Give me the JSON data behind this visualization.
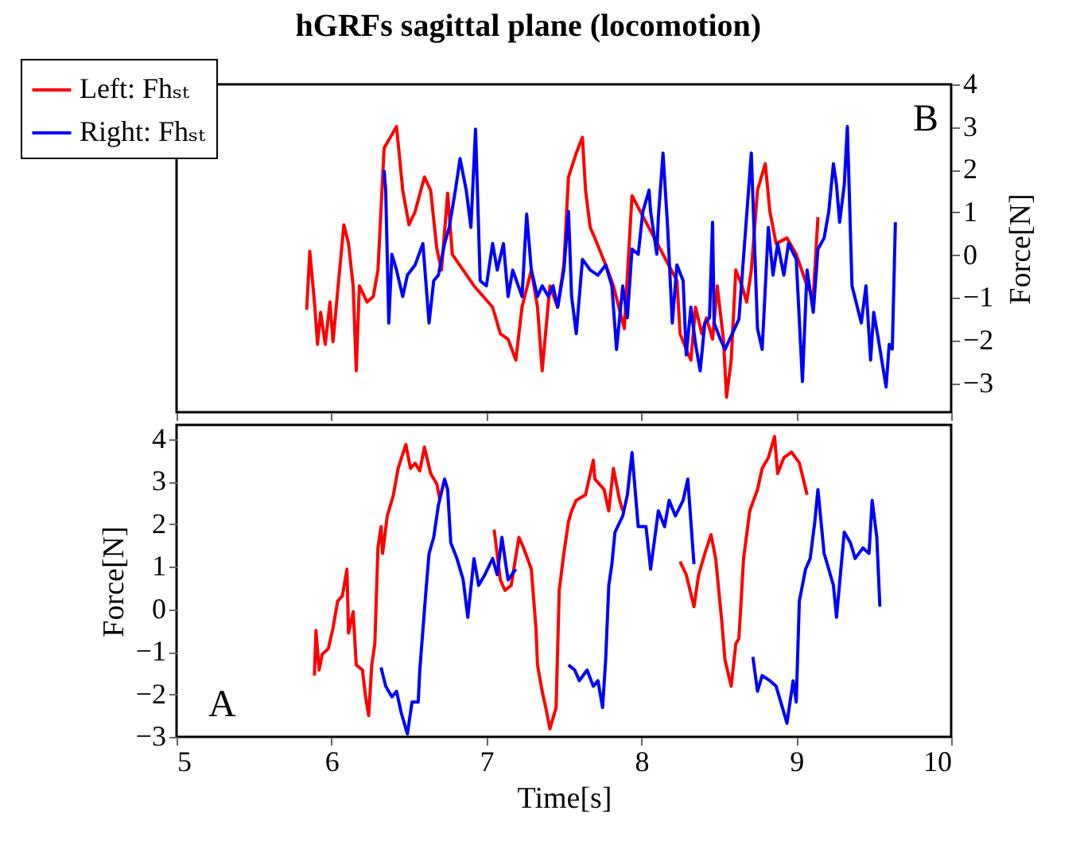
{
  "chart_data": [
    {
      "type": "line",
      "title": "hGRFs sagittal plane (locomotion)",
      "y2label": "Force[N]",
      "xlim": [
        5,
        10
      ],
      "xticks": [
        5,
        6,
        7,
        8,
        9,
        10
      ],
      "y2lim": [
        -3.68,
        4
      ],
      "y2ticks": [
        -3,
        -2,
        -1,
        0,
        1,
        2,
        3,
        4
      ],
      "tick_labels": "y",
      "legend": "top left",
      "annotations": [
        "B"
      ],
      "series": [
        {
          "name": "Left: Fhₛₜ",
          "color": "#ff0000",
          "axis": "y2",
          "x": [
            5.84,
            5.86,
            5.89,
            5.91,
            5.93,
            5.96,
            5.99,
            6.01,
            6.04,
            6.08,
            6.11,
            6.14,
            6.16,
            6.18,
            6.23,
            6.27,
            6.3,
            6.34,
            6.39,
            6.42,
            6.46,
            6.5,
            6.54,
            6.6,
            6.64,
            6.68,
            6.71,
            6.75,
            6.78,
            6.92,
            7.04,
            7.09,
            7.14,
            7.19,
            7.23,
            7.29,
            7.33,
            7.36,
            7.41,
            7.46,
            7.5,
            7.53,
            7.58,
            7.62,
            7.64,
            7.67,
            7.7,
            7.77,
            7.82,
            7.89,
            7.94,
            8.23,
            8.25,
            8.29,
            8.32,
            8.35,
            8.39,
            8.42,
            8.46,
            8.49,
            8.53,
            8.55,
            8.58,
            8.61,
            8.65,
            8.68,
            8.71,
            8.75,
            8.8,
            8.83,
            8.87,
            8.94,
            9.0,
            9.07,
            9.11,
            9.14
          ],
          "values": [
            -1.28,
            0.09,
            -1.1,
            -2.09,
            -1.34,
            -2.09,
            -1.1,
            -2.03,
            -0.85,
            0.71,
            0.27,
            -0.72,
            -2.71,
            -0.72,
            -1.1,
            -0.97,
            -0.35,
            2.51,
            2.82,
            3.01,
            1.52,
            0.71,
            1.02,
            1.83,
            1.52,
            0.15,
            -0.35,
            1.45,
            0.02,
            -0.72,
            -1.22,
            -1.84,
            -1.97,
            -2.46,
            -1.22,
            -0.35,
            -1.22,
            -2.71,
            -0.72,
            -1.22,
            -0.23,
            1.83,
            2.39,
            2.76,
            1.52,
            0.65,
            0.4,
            -0.23,
            -0.72,
            -1.72,
            1.39,
            -0.6,
            -1.84,
            -2.21,
            -2.46,
            -1.22,
            -1.84,
            -1.47,
            -1.97,
            -0.72,
            -1.97,
            -3.33,
            -2.46,
            -0.35,
            -0.72,
            -1.1,
            -0.35,
            1.52,
            2.14,
            1.02,
            0.27,
            0.4,
            0.02,
            -0.72,
            -0.97,
            0.89
          ]
        },
        {
          "name": "Right: Fhₛₜ",
          "color": "#0000ff",
          "axis": "y2",
          "x": [
            6.34,
            6.35,
            6.37,
            6.39,
            6.42,
            6.46,
            6.49,
            6.54,
            6.59,
            6.63,
            6.66,
            6.69,
            6.73,
            6.76,
            6.8,
            6.83,
            6.87,
            6.9,
            6.93,
            6.96,
            7.0,
            7.04,
            7.07,
            7.11,
            7.14,
            7.17,
            7.23,
            7.26,
            7.29,
            7.33,
            7.36,
            7.4,
            7.43,
            7.46,
            7.5,
            7.53,
            7.55,
            7.58,
            7.62,
            7.67,
            7.72,
            7.77,
            7.81,
            7.84,
            7.88,
            7.91,
            7.94,
            7.98,
            8.01,
            8.05,
            8.06,
            8.1,
            8.11,
            8.14,
            8.17,
            8.2,
            8.23,
            8.27,
            8.29,
            8.32,
            8.35,
            8.38,
            8.41,
            8.44,
            8.46,
            8.47,
            8.51,
            8.54,
            8.63,
            8.71,
            8.75,
            8.78,
            8.82,
            8.85,
            8.88,
            8.92,
            8.95,
            9.0,
            9.04,
            9.07,
            9.11,
            9.14,
            9.18,
            9.21,
            9.24,
            9.26,
            9.28,
            9.31,
            9.33,
            9.36,
            9.42,
            9.45,
            9.48,
            9.5,
            9.53,
            9.58,
            9.6,
            9.62,
            9.64
          ],
          "values": [
            1.99,
            1.52,
            -1.59,
            0.02,
            -0.35,
            -0.97,
            -0.47,
            -0.23,
            0.27,
            -1.59,
            -0.6,
            -0.47,
            0.27,
            0.65,
            1.52,
            2.26,
            1.52,
            0.65,
            2.95,
            -0.6,
            -0.72,
            0.27,
            -0.35,
            0.27,
            -0.97,
            -0.35,
            -0.97,
            0.96,
            -0.35,
            -0.97,
            -0.72,
            -0.97,
            -0.72,
            -1.22,
            -0.35,
            1.02,
            -0.97,
            -1.84,
            -0.1,
            -0.35,
            -0.47,
            -0.23,
            -0.72,
            -2.21,
            -0.72,
            -1.47,
            0.14,
            0.02,
            1.02,
            1.52,
            1.02,
            0.02,
            0.89,
            2.39,
            0.65,
            -1.59,
            -0.23,
            -0.6,
            -2.34,
            -1.22,
            -2.09,
            -2.71,
            -1.59,
            -1.47,
            0.77,
            -1.59,
            -1.97,
            -2.21,
            -1.5,
            2.39,
            -1.72,
            -2.21,
            0.65,
            -0.47,
            0.27,
            -0.47,
            0.27,
            -0.1,
            -2.96,
            -0.35,
            -1.34,
            0.14,
            0.4,
            1.02,
            2.14,
            1.64,
            0.77,
            1.64,
            3.01,
            -0.72,
            -1.59,
            -0.72,
            -2.46,
            -1.34,
            -1.97,
            -3.09,
            -2.09,
            -2.2,
            0.77
          ]
        }
      ]
    },
    {
      "type": "line",
      "xlabel": "Time[s]",
      "ylabel": "Force[N]",
      "xlim": [
        5,
        10
      ],
      "xticks": [
        5,
        6,
        7,
        8,
        9,
        10
      ],
      "ylim": [
        -3,
        4.33
      ],
      "yticks": [
        -3,
        -2,
        -1,
        0,
        1,
        2,
        3,
        4
      ],
      "annotations": [
        "A"
      ],
      "series": [
        {
          "color": "#ff0000",
          "x": [
            5.89,
            5.9,
            5.92,
            5.94,
            5.98,
            6.01,
            6.04,
            6.07,
            6.1,
            6.11,
            6.14,
            6.16,
            6.2,
            6.22,
            6.24,
            6.26,
            6.28,
            6.3,
            6.32,
            6.33,
            6.36,
            6.4,
            6.43,
            6.48,
            6.51,
            6.54,
            6.57,
            6.6,
            6.64,
            6.68,
            6.7,
            6.87,
            7.05,
            7.09,
            7.12,
            7.16,
            7.21,
            7.24,
            7.29,
            7.32,
            7.33,
            7.36,
            7.39,
            7.41,
            7.45,
            7.47,
            7.5,
            7.53,
            7.55,
            7.58,
            7.64,
            7.69,
            7.7,
            7.76,
            7.79,
            7.82,
            7.86,
            7.88,
            8.06,
            8.25,
            8.29,
            8.34,
            8.37,
            8.41,
            8.45,
            8.48,
            8.52,
            8.54,
            8.58,
            8.61,
            8.63,
            8.66,
            8.7,
            8.75,
            8.78,
            8.82,
            8.86,
            8.88,
            8.92,
            8.97,
            9.02,
            9.07
          ],
          "values": [
            -1.56,
            -0.5,
            -1.43,
            -1.06,
            -0.93,
            -0.44,
            0.19,
            0.31,
            0.94,
            -0.56,
            -0.06,
            -1.31,
            -1.43,
            -2.06,
            -2.5,
            -1.31,
            -0.81,
            1.44,
            1.94,
            1.31,
            2.19,
            2.69,
            3.31,
            3.87,
            3.31,
            3.43,
            3.25,
            3.81,
            3.19,
            2.94,
            2.56,
            null,
            1.87,
            0.69,
            0.44,
            0.56,
            1.69,
            1.44,
            0.94,
            -0.44,
            -1.31,
            -1.93,
            -2.43,
            -2.81,
            -2.31,
            0.44,
            1.31,
            2.06,
            2.31,
            2.56,
            2.69,
            3.5,
            3.06,
            2.81,
            2.31,
            3.31,
            2.56,
            2.31,
            null,
            1.12,
            0.81,
            0.06,
            0.81,
            1.31,
            1.75,
            1.19,
            -0.31,
            -1.19,
            -1.81,
            -0.81,
            -0.69,
            1.19,
            2.31,
            2.81,
            3.31,
            3.56,
            4.06,
            3.19,
            3.56,
            3.69,
            3.44,
            2.69
          ]
        },
        {
          "color": "#0000ff",
          "x": [
            6.32,
            6.35,
            6.39,
            6.42,
            6.45,
            6.49,
            6.52,
            6.56,
            6.57,
            6.61,
            6.63,
            6.66,
            6.69,
            6.73,
            6.75,
            6.77,
            6.81,
            6.85,
            6.88,
            6.92,
            6.95,
            6.99,
            7.04,
            7.07,
            7.1,
            7.14,
            7.19,
            7.36,
            7.53,
            7.57,
            7.6,
            7.65,
            7.69,
            7.72,
            7.75,
            7.77,
            7.79,
            7.81,
            7.83,
            7.88,
            7.91,
            7.94,
            7.98,
            8.03,
            8.06,
            8.11,
            8.15,
            8.18,
            8.22,
            8.27,
            8.3,
            8.34,
            8.53,
            8.72,
            8.75,
            8.78,
            8.83,
            8.87,
            8.9,
            8.94,
            8.98,
            9.0,
            9.02,
            9.06,
            9.09,
            9.12,
            9.14,
            9.18,
            9.21,
            9.24,
            9.26,
            9.31,
            9.35,
            9.38,
            9.43,
            9.47,
            9.49,
            9.52,
            9.54
          ],
          "values": [
            -1.37,
            -1.81,
            -2.06,
            -1.93,
            -2.43,
            -2.93,
            -2.18,
            -2.18,
            -1.43,
            0.44,
            1.31,
            1.69,
            2.44,
            3.06,
            2.81,
            1.56,
            1.19,
            0.69,
            -0.19,
            1.19,
            0.56,
            0.81,
            1.19,
            0.81,
            1.69,
            0.69,
            0.94,
            null,
            -1.31,
            -1.43,
            -1.68,
            -1.43,
            -1.81,
            -1.68,
            -2.31,
            -1.18,
            0.56,
            1.06,
            1.81,
            2.19,
            2.69,
            3.68,
            1.94,
            1.94,
            0.94,
            2.31,
            1.94,
            2.56,
            2.19,
            2.56,
            3.06,
            1.06,
            null,
            -1.12,
            -1.93,
            -1.56,
            -1.68,
            -1.81,
            -2.18,
            -2.68,
            -1.68,
            -2.18,
            0.19,
            0.94,
            1.19,
            2.06,
            2.81,
            1.31,
            0.94,
            0.56,
            -0.19,
            1.81,
            1.56,
            1.19,
            1.44,
            1.31,
            2.56,
            1.69,
            0.06
          ]
        }
      ]
    }
  ]
}
